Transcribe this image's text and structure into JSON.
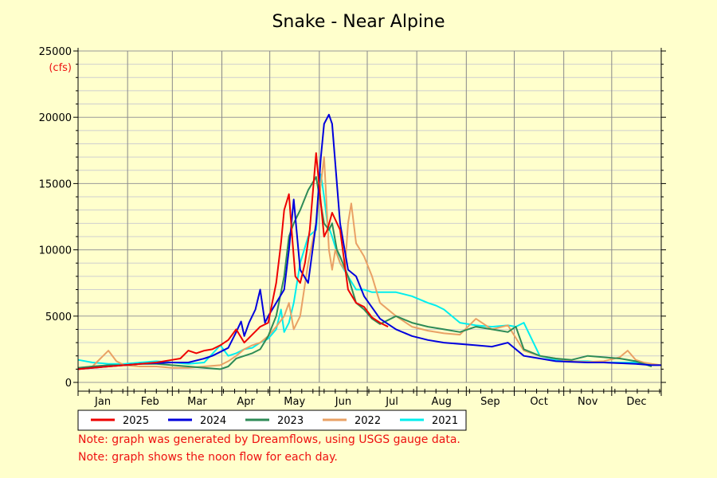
{
  "chart_data": {
    "type": "line",
    "title": "Snake - Near Alpine",
    "ylabel": "(cfs)",
    "xlabel": "",
    "ylim": [
      0,
      25000
    ],
    "yticks": [
      0,
      5000,
      10000,
      15000,
      20000,
      25000
    ],
    "xlim_day": [
      1,
      366
    ],
    "months": [
      "Jan",
      "Feb",
      "Mar",
      "Apr",
      "May",
      "Jun",
      "Jul",
      "Aug",
      "Sep",
      "Oct",
      "Nov",
      "Dec"
    ],
    "grid": true,
    "legend_position": "bottom-left",
    "series": [
      {
        "name": "2025",
        "color": "#ee0000",
        "x": [
          1,
          10,
          20,
          30,
          40,
          50,
          60,
          65,
          70,
          75,
          80,
          85,
          90,
          95,
          100,
          105,
          110,
          115,
          120,
          125,
          128,
          130,
          133,
          135,
          137,
          140,
          143,
          146,
          150,
          153,
          155,
          157,
          160,
          165,
          170,
          175,
          180,
          185,
          190,
          195
        ],
        "y": [
          1000,
          1100,
          1200,
          1300,
          1400,
          1500,
          1700,
          1800,
          2400,
          2200,
          2400,
          2500,
          2800,
          3200,
          4000,
          3000,
          3600,
          4200,
          4500,
          7500,
          10500,
          13000,
          14200,
          11000,
          8000,
          7500,
          9000,
          11500,
          17300,
          13500,
          11000,
          11500,
          12800,
          11500,
          7000,
          6000,
          5700,
          4900,
          4500,
          4200
        ]
      },
      {
        "name": "2024",
        "color": "#0000dd",
        "x": [
          1,
          10,
          20,
          30,
          40,
          50,
          60,
          70,
          80,
          85,
          90,
          95,
          100,
          103,
          105,
          108,
          112,
          115,
          118,
          120,
          125,
          130,
          133,
          136,
          140,
          145,
          150,
          153,
          155,
          158,
          160,
          165,
          170,
          175,
          180,
          190,
          200,
          210,
          220,
          230,
          240,
          250,
          260,
          270,
          280,
          290,
          300,
          310,
          320,
          330,
          340,
          350,
          360,
          366
        ],
        "y": [
          1000,
          1100,
          1200,
          1300,
          1400,
          1450,
          1500,
          1500,
          1800,
          2000,
          2300,
          2600,
          3800,
          4600,
          3500,
          4500,
          5500,
          7000,
          4500,
          5000,
          6000,
          7000,
          10000,
          13800,
          8500,
          7500,
          12000,
          17000,
          19500,
          20200,
          19500,
          12000,
          8500,
          8000,
          6500,
          4800,
          4000,
          3500,
          3200,
          3000,
          2900,
          2800,
          2700,
          3000,
          2000,
          1800,
          1600,
          1550,
          1500,
          1500,
          1450,
          1400,
          1300,
          1300
        ]
      },
      {
        "name": "2023",
        "color": "#2e8b57",
        "x": [
          1,
          10,
          20,
          30,
          40,
          50,
          60,
          70,
          80,
          90,
          95,
          100,
          105,
          110,
          115,
          120,
          125,
          130,
          133,
          136,
          140,
          145,
          150,
          155,
          158,
          160,
          163,
          165,
          170,
          175,
          180,
          185,
          190,
          200,
          210,
          220,
          230,
          240,
          250,
          260,
          270,
          275,
          280,
          290,
          300,
          310,
          320,
          330,
          340,
          350,
          360
        ],
        "y": [
          1100,
          1200,
          1300,
          1300,
          1400,
          1400,
          1300,
          1200,
          1100,
          1000,
          1200,
          1800,
          2000,
          2200,
          2500,
          3500,
          5000,
          8000,
          11000,
          12000,
          13000,
          14500,
          15500,
          12000,
          11500,
          12000,
          10000,
          9500,
          8000,
          6000,
          5500,
          4800,
          4400,
          5000,
          4500,
          4200,
          4000,
          3800,
          4200,
          4000,
          3800,
          4200,
          2500,
          2000,
          1800,
          1700,
          2000,
          1900,
          1800,
          1600,
          1200
        ]
      },
      {
        "name": "2022",
        "color": "#e9a165",
        "x": [
          1,
          10,
          15,
          20,
          25,
          30,
          40,
          50,
          60,
          70,
          80,
          90,
          95,
          100,
          105,
          110,
          115,
          120,
          125,
          130,
          133,
          136,
          140,
          145,
          150,
          155,
          158,
          160,
          162,
          165,
          168,
          170,
          172,
          175,
          180,
          185,
          190,
          200,
          210,
          220,
          230,
          240,
          250,
          260,
          270,
          280,
          290,
          300,
          310,
          320,
          330,
          340,
          345,
          350,
          355,
          360,
          366
        ],
        "y": [
          1100,
          1200,
          1800,
          2400,
          1600,
          1300,
          1200,
          1200,
          1100,
          1100,
          1200,
          1300,
          1600,
          2000,
          2500,
          2800,
          3000,
          3500,
          4200,
          5000,
          6000,
          4000,
          5000,
          9000,
          12000,
          17000,
          10000,
          8500,
          10000,
          9000,
          8500,
          12000,
          13500,
          10500,
          9500,
          8000,
          6000,
          5000,
          4200,
          3900,
          3700,
          3600,
          4800,
          4000,
          4300,
          2400,
          2000,
          1800,
          1600,
          1550,
          1600,
          1900,
          2400,
          1700,
          1500,
          1400,
          1300
        ]
      },
      {
        "name": "2021",
        "color": "#00eeee",
        "x": [
          1,
          10,
          20,
          30,
          40,
          50,
          60,
          70,
          80,
          90,
          95,
          100,
          105,
          110,
          115,
          120,
          125,
          128,
          130,
          133,
          136,
          140,
          145,
          150,
          153,
          155,
          157,
          160,
          165,
          170,
          175,
          180,
          185,
          190,
          200,
          210,
          220,
          225,
          230,
          240,
          250,
          260,
          270,
          275,
          280,
          290,
          300,
          310,
          320,
          330,
          340,
          350,
          360
        ],
        "y": [
          1700,
          1500,
          1400,
          1400,
          1500,
          1600,
          1500,
          1400,
          1500,
          2800,
          2000,
          2200,
          2500,
          2600,
          3000,
          3300,
          4000,
          5500,
          3800,
          4500,
          6000,
          9000,
          11000,
          11500,
          15700,
          14000,
          12000,
          11000,
          9000,
          8000,
          7000,
          7000,
          6800,
          6800,
          6800,
          6500,
          6000,
          5800,
          5500,
          4500,
          4300,
          4200,
          4300,
          4200,
          4500,
          2000,
          1700,
          1600,
          1600,
          1500,
          1500,
          1500,
          1400
        ]
      }
    ]
  },
  "notes": [
    "Note: graph was generated by Dreamflows, using USGS gauge data.",
    "Note: graph shows the noon flow for each day."
  ]
}
